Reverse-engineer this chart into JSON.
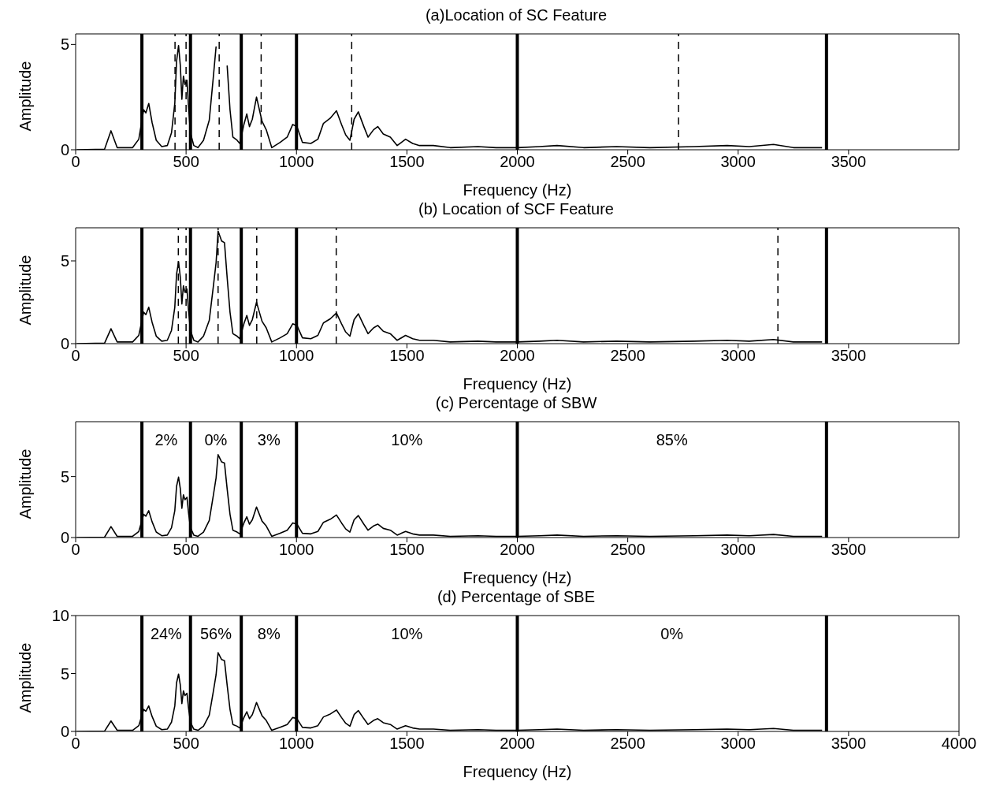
{
  "chart_data": [
    {
      "type": "line",
      "title": "(a)Location of SC Feature",
      "xlabel": "Frequency (Hz)",
      "ylabel": "Amplitude",
      "xlim": [
        0,
        4000
      ],
      "xticks": [
        0,
        500,
        1000,
        1500,
        2000,
        2500,
        3000,
        3500
      ],
      "ylim": [
        0,
        5.5
      ],
      "yticks": [
        0,
        5
      ],
      "grid": false,
      "x": [
        5,
        131,
        160,
        188,
        258,
        286,
        308,
        318,
        331,
        346,
        365,
        390,
        415,
        434,
        449,
        457,
        466,
        474,
        481,
        488,
        495,
        504,
        512,
        520,
        535,
        554,
        579,
        605,
        623,
        636,
        645,
        661,
        674,
        686,
        699,
        712,
        731,
        743,
        762,
        775,
        787,
        800,
        819,
        832,
        844,
        863,
        888,
        926,
        958,
        983,
        1002,
        1027,
        1065,
        1097,
        1122,
        1153,
        1181,
        1204,
        1223,
        1242,
        1261,
        1280,
        1305,
        1324,
        1349,
        1368,
        1393,
        1425,
        1456,
        1494,
        1526,
        1557,
        1620,
        1696,
        1822,
        1904,
        2000,
        2100,
        2180,
        2300,
        2450,
        2600,
        2800,
        2950,
        3050,
        3160,
        3250,
        3380
      ],
      "series": [
        {
          "color": "#000000",
          "values": [
            0,
            0.03,
            0.9,
            0.1,
            0.1,
            0.5,
            1.9,
            1.75,
            2.2,
            1.3,
            0.45,
            0.15,
            0.2,
            0.8,
            2.2,
            4.2,
            4.95,
            4.0,
            2.4,
            3.5,
            3.1,
            3.3,
            1.9,
            0.8,
            0.2,
            0.1,
            0.45,
            1.4,
            3.4,
            4.9,
            null,
            null,
            null,
            4.0,
            1.9,
            0.6,
            0.45,
            0.3,
            1.2,
            1.7,
            1.1,
            1.45,
            2.5,
            1.9,
            1.35,
            0.95,
            0.1,
            0.35,
            0.6,
            1.2,
            1.1,
            0.35,
            0.3,
            0.5,
            1.25,
            1.5,
            1.85,
            1.2,
            0.7,
            0.45,
            1.45,
            1.8,
            1.1,
            0.6,
            0.95,
            1.1,
            0.75,
            0.6,
            0.2,
            0.5,
            0.3,
            0.2,
            0.2,
            0.1,
            0.15,
            0.1,
            0.1,
            0.15,
            0.2,
            0.1,
            0.15,
            0.1,
            0.15,
            0.2,
            0.15,
            0.25,
            0.1,
            0.1
          ]
        }
      ],
      "ref_lines": [
        {
          "axis": "x",
          "value": 300,
          "color": "#000000",
          "line_style": "solid"
        },
        {
          "axis": "x",
          "value": 520,
          "color": "#000000",
          "line_style": "solid"
        },
        {
          "axis": "x",
          "value": 750,
          "color": "#000000",
          "line_style": "solid"
        },
        {
          "axis": "x",
          "value": 1000,
          "color": "#000000",
          "line_style": "solid"
        },
        {
          "axis": "x",
          "value": 2000,
          "color": "#000000",
          "line_style": "solid"
        },
        {
          "axis": "x",
          "value": 3400,
          "color": "#000000",
          "line_style": "solid"
        },
        {
          "axis": "x",
          "value": 450,
          "color": "#000000",
          "line_style": "dashed"
        },
        {
          "axis": "x",
          "value": 500,
          "color": "#000000",
          "line_style": "dashed"
        },
        {
          "axis": "x",
          "value": 650,
          "color": "#000000",
          "line_style": "dashed"
        },
        {
          "axis": "x",
          "value": 840,
          "color": "#000000",
          "line_style": "dashed"
        },
        {
          "axis": "x",
          "value": 1250,
          "color": "#000000",
          "line_style": "dashed"
        },
        {
          "axis": "x",
          "value": 2730,
          "color": "#000000",
          "line_style": "dashed"
        }
      ]
    },
    {
      "type": "line",
      "title": "(b) Location of SCF Feature",
      "xlabel": "Frequency (Hz)",
      "ylabel": "Amplitude",
      "xlim": [
        0,
        4000
      ],
      "xticks": [
        0,
        500,
        1000,
        1500,
        2000,
        2500,
        3000,
        3500
      ],
      "ylim": [
        0,
        7
      ],
      "yticks": [
        0,
        5
      ],
      "grid": false,
      "x": [
        5,
        131,
        160,
        188,
        258,
        286,
        308,
        318,
        331,
        346,
        365,
        390,
        415,
        434,
        449,
        457,
        466,
        474,
        481,
        488,
        495,
        504,
        512,
        520,
        535,
        554,
        579,
        605,
        623,
        636,
        645,
        661,
        674,
        686,
        699,
        712,
        731,
        743,
        762,
        775,
        787,
        800,
        819,
        832,
        844,
        863,
        888,
        926,
        958,
        983,
        1002,
        1027,
        1065,
        1097,
        1122,
        1153,
        1181,
        1204,
        1223,
        1242,
        1261,
        1280,
        1305,
        1324,
        1349,
        1368,
        1393,
        1425,
        1456,
        1494,
        1526,
        1557,
        1620,
        1696,
        1822,
        1904,
        2000,
        2100,
        2180,
        2300,
        2450,
        2600,
        2800,
        2950,
        3050,
        3160,
        3250,
        3380
      ],
      "series": [
        {
          "color": "#000000",
          "values": [
            0,
            0.03,
            0.9,
            0.1,
            0.1,
            0.5,
            1.9,
            1.75,
            2.2,
            1.3,
            0.45,
            0.15,
            0.2,
            0.8,
            2.2,
            4.2,
            4.95,
            4.0,
            2.4,
            3.5,
            3.1,
            3.3,
            1.9,
            0.8,
            0.2,
            0.1,
            0.45,
            1.4,
            3.4,
            4.9,
            6.8,
            6.2,
            6.1,
            4.0,
            1.9,
            0.6,
            0.45,
            0.3,
            1.2,
            1.7,
            1.1,
            1.45,
            2.5,
            1.9,
            1.35,
            0.95,
            0.1,
            0.35,
            0.6,
            1.2,
            1.1,
            0.35,
            0.3,
            0.5,
            1.25,
            1.5,
            1.85,
            1.2,
            0.7,
            0.45,
            1.45,
            1.8,
            1.1,
            0.6,
            0.95,
            1.1,
            0.75,
            0.6,
            0.2,
            0.5,
            0.3,
            0.2,
            0.2,
            0.1,
            0.15,
            0.1,
            0.1,
            0.15,
            0.2,
            0.1,
            0.15,
            0.1,
            0.15,
            0.2,
            0.15,
            0.25,
            0.1,
            0.1
          ]
        }
      ],
      "ref_lines": [
        {
          "axis": "x",
          "value": 300,
          "color": "#000000",
          "line_style": "solid"
        },
        {
          "axis": "x",
          "value": 520,
          "color": "#000000",
          "line_style": "solid"
        },
        {
          "axis": "x",
          "value": 750,
          "color": "#000000",
          "line_style": "solid"
        },
        {
          "axis": "x",
          "value": 1000,
          "color": "#000000",
          "line_style": "solid"
        },
        {
          "axis": "x",
          "value": 2000,
          "color": "#000000",
          "line_style": "solid"
        },
        {
          "axis": "x",
          "value": 3400,
          "color": "#000000",
          "line_style": "solid"
        },
        {
          "axis": "x",
          "value": 465,
          "color": "#000000",
          "line_style": "dashed"
        },
        {
          "axis": "x",
          "value": 500,
          "color": "#000000",
          "line_style": "dashed"
        },
        {
          "axis": "x",
          "value": 645,
          "color": "#000000",
          "line_style": "dashed"
        },
        {
          "axis": "x",
          "value": 820,
          "color": "#000000",
          "line_style": "dashed"
        },
        {
          "axis": "x",
          "value": 1180,
          "color": "#000000",
          "line_style": "dashed"
        },
        {
          "axis": "x",
          "value": 3180,
          "color": "#000000",
          "line_style": "dashed"
        }
      ]
    },
    {
      "type": "line",
      "title": "(c) Percentage of SBW",
      "xlabel": "Frequency (Hz)",
      "ylabel": "Amplitude",
      "xlim": [
        0,
        4000
      ],
      "xticks": [
        0,
        500,
        1000,
        1500,
        2000,
        2500,
        3000,
        3500
      ],
      "ylim": [
        0,
        9.5
      ],
      "yticks": [
        0,
        5
      ],
      "grid": false,
      "x": [
        5,
        131,
        160,
        188,
        258,
        286,
        308,
        318,
        331,
        346,
        365,
        390,
        415,
        434,
        449,
        457,
        466,
        474,
        481,
        488,
        495,
        504,
        512,
        520,
        535,
        554,
        579,
        605,
        623,
        636,
        645,
        661,
        674,
        686,
        699,
        712,
        731,
        743,
        762,
        775,
        787,
        800,
        819,
        832,
        844,
        863,
        888,
        926,
        958,
        983,
        1002,
        1027,
        1065,
        1097,
        1122,
        1153,
        1181,
        1204,
        1223,
        1242,
        1261,
        1280,
        1305,
        1324,
        1349,
        1368,
        1393,
        1425,
        1456,
        1494,
        1526,
        1557,
        1620,
        1696,
        1822,
        1904,
        2000,
        2100,
        2180,
        2300,
        2450,
        2600,
        2800,
        2950,
        3050,
        3160,
        3250,
        3380
      ],
      "series": [
        {
          "color": "#000000",
          "values": [
            0,
            0.03,
            0.9,
            0.1,
            0.1,
            0.5,
            1.9,
            1.75,
            2.2,
            1.3,
            0.45,
            0.15,
            0.2,
            0.8,
            2.2,
            4.2,
            4.95,
            4.0,
            2.4,
            3.5,
            3.1,
            3.3,
            1.9,
            0.8,
            0.2,
            0.1,
            0.45,
            1.4,
            3.4,
            4.9,
            6.8,
            6.2,
            6.1,
            4.0,
            1.9,
            0.6,
            0.45,
            0.3,
            1.2,
            1.7,
            1.1,
            1.45,
            2.5,
            1.9,
            1.35,
            0.95,
            0.1,
            0.35,
            0.6,
            1.2,
            1.1,
            0.35,
            0.3,
            0.5,
            1.25,
            1.5,
            1.85,
            1.2,
            0.7,
            0.45,
            1.45,
            1.8,
            1.1,
            0.6,
            0.95,
            1.1,
            0.75,
            0.6,
            0.2,
            0.5,
            0.3,
            0.2,
            0.2,
            0.1,
            0.15,
            0.1,
            0.1,
            0.15,
            0.2,
            0.1,
            0.15,
            0.1,
            0.15,
            0.2,
            0.15,
            0.25,
            0.1,
            0.1
          ]
        }
      ],
      "ref_lines": [
        {
          "axis": "x",
          "value": 300,
          "color": "#000000",
          "line_style": "solid"
        },
        {
          "axis": "x",
          "value": 520,
          "color": "#000000",
          "line_style": "solid"
        },
        {
          "axis": "x",
          "value": 750,
          "color": "#000000",
          "line_style": "solid"
        },
        {
          "axis": "x",
          "value": 1000,
          "color": "#000000",
          "line_style": "solid"
        },
        {
          "axis": "x",
          "value": 2000,
          "color": "#000000",
          "line_style": "solid"
        },
        {
          "axis": "x",
          "value": 3400,
          "color": "#000000",
          "line_style": "solid"
        }
      ],
      "annotations": [
        "2%",
        "0%",
        "3%",
        "10%",
        "85%"
      ]
    },
    {
      "type": "line",
      "title": "(d) Percentage of SBE",
      "xlabel": "Frequency (Hz)",
      "ylabel": "Amplitude",
      "xlim": [
        0,
        4000
      ],
      "xticks": [
        0,
        500,
        1000,
        1500,
        2000,
        2500,
        3000,
        3500,
        4000
      ],
      "ylim": [
        0,
        10
      ],
      "yticks": [
        0,
        5,
        10
      ],
      "grid": false,
      "x": [
        5,
        131,
        160,
        188,
        258,
        286,
        308,
        318,
        331,
        346,
        365,
        390,
        415,
        434,
        449,
        457,
        466,
        474,
        481,
        488,
        495,
        504,
        512,
        520,
        535,
        554,
        579,
        605,
        623,
        636,
        645,
        661,
        674,
        686,
        699,
        712,
        731,
        743,
        762,
        775,
        787,
        800,
        819,
        832,
        844,
        863,
        888,
        926,
        958,
        983,
        1002,
        1027,
        1065,
        1097,
        1122,
        1153,
        1181,
        1204,
        1223,
        1242,
        1261,
        1280,
        1305,
        1324,
        1349,
        1368,
        1393,
        1425,
        1456,
        1494,
        1526,
        1557,
        1620,
        1696,
        1822,
        1904,
        2000,
        2100,
        2180,
        2300,
        2450,
        2600,
        2800,
        2950,
        3050,
        3160,
        3250,
        3380
      ],
      "series": [
        {
          "color": "#000000",
          "values": [
            0,
            0.03,
            0.9,
            0.1,
            0.1,
            0.5,
            1.9,
            1.75,
            2.2,
            1.3,
            0.45,
            0.15,
            0.2,
            0.8,
            2.2,
            4.2,
            4.95,
            4.0,
            2.4,
            3.5,
            3.1,
            3.3,
            1.9,
            0.8,
            0.2,
            0.1,
            0.45,
            1.4,
            3.4,
            4.9,
            6.8,
            6.2,
            6.1,
            4.0,
            1.9,
            0.6,
            0.45,
            0.3,
            1.2,
            1.7,
            1.1,
            1.45,
            2.5,
            1.9,
            1.35,
            0.95,
            0.1,
            0.35,
            0.6,
            1.2,
            1.1,
            0.35,
            0.3,
            0.5,
            1.25,
            1.5,
            1.85,
            1.2,
            0.7,
            0.45,
            1.45,
            1.8,
            1.1,
            0.6,
            0.95,
            1.1,
            0.75,
            0.6,
            0.2,
            0.5,
            0.3,
            0.2,
            0.2,
            0.1,
            0.15,
            0.1,
            0.1,
            0.15,
            0.2,
            0.1,
            0.15,
            0.1,
            0.15,
            0.2,
            0.15,
            0.25,
            0.1,
            0.1
          ]
        }
      ],
      "ref_lines": [
        {
          "axis": "x",
          "value": 300,
          "color": "#000000",
          "line_style": "solid"
        },
        {
          "axis": "x",
          "value": 520,
          "color": "#000000",
          "line_style": "solid"
        },
        {
          "axis": "x",
          "value": 750,
          "color": "#000000",
          "line_style": "solid"
        },
        {
          "axis": "x",
          "value": 1000,
          "color": "#000000",
          "line_style": "solid"
        },
        {
          "axis": "x",
          "value": 2000,
          "color": "#000000",
          "line_style": "solid"
        },
        {
          "axis": "x",
          "value": 3400,
          "color": "#000000",
          "line_style": "solid"
        }
      ],
      "annotations": [
        "24%",
        "56%",
        "8%",
        "10%",
        "0%"
      ]
    }
  ]
}
